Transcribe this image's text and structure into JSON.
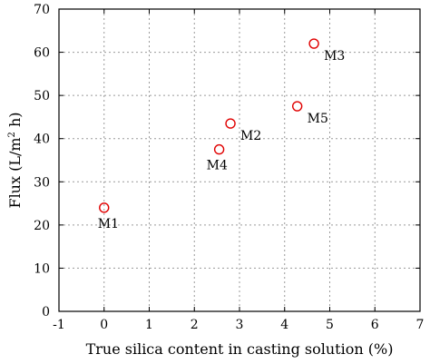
{
  "chart_data": {
    "type": "scatter",
    "title": "",
    "xlabel": "True silica content in casting solution (%)",
    "ylabel_main": "Flux (L/m",
    "ylabel_sup": "2",
    "ylabel_tail": " h)",
    "xlim": [
      -1,
      7
    ],
    "ylim": [
      0,
      70
    ],
    "x_ticks": [
      -1,
      0,
      1,
      2,
      3,
      4,
      5,
      6,
      7
    ],
    "y_ticks": [
      0,
      10,
      20,
      30,
      40,
      50,
      60,
      70
    ],
    "grid": true,
    "marker": "open-circle",
    "marker_color": "#e00000",
    "points": [
      {
        "label": "M1",
        "x": 0.0,
        "y": 24.0,
        "label_pos": "below"
      },
      {
        "label": "M2",
        "x": 2.8,
        "y": 43.5,
        "label_pos": "below-right"
      },
      {
        "label": "M3",
        "x": 4.65,
        "y": 62.0,
        "label_pos": "below-right"
      },
      {
        "label": "M4",
        "x": 2.55,
        "y": 37.5,
        "label_pos": "below-left"
      },
      {
        "label": "M5",
        "x": 4.28,
        "y": 47.5,
        "label_pos": "below-right"
      }
    ]
  }
}
